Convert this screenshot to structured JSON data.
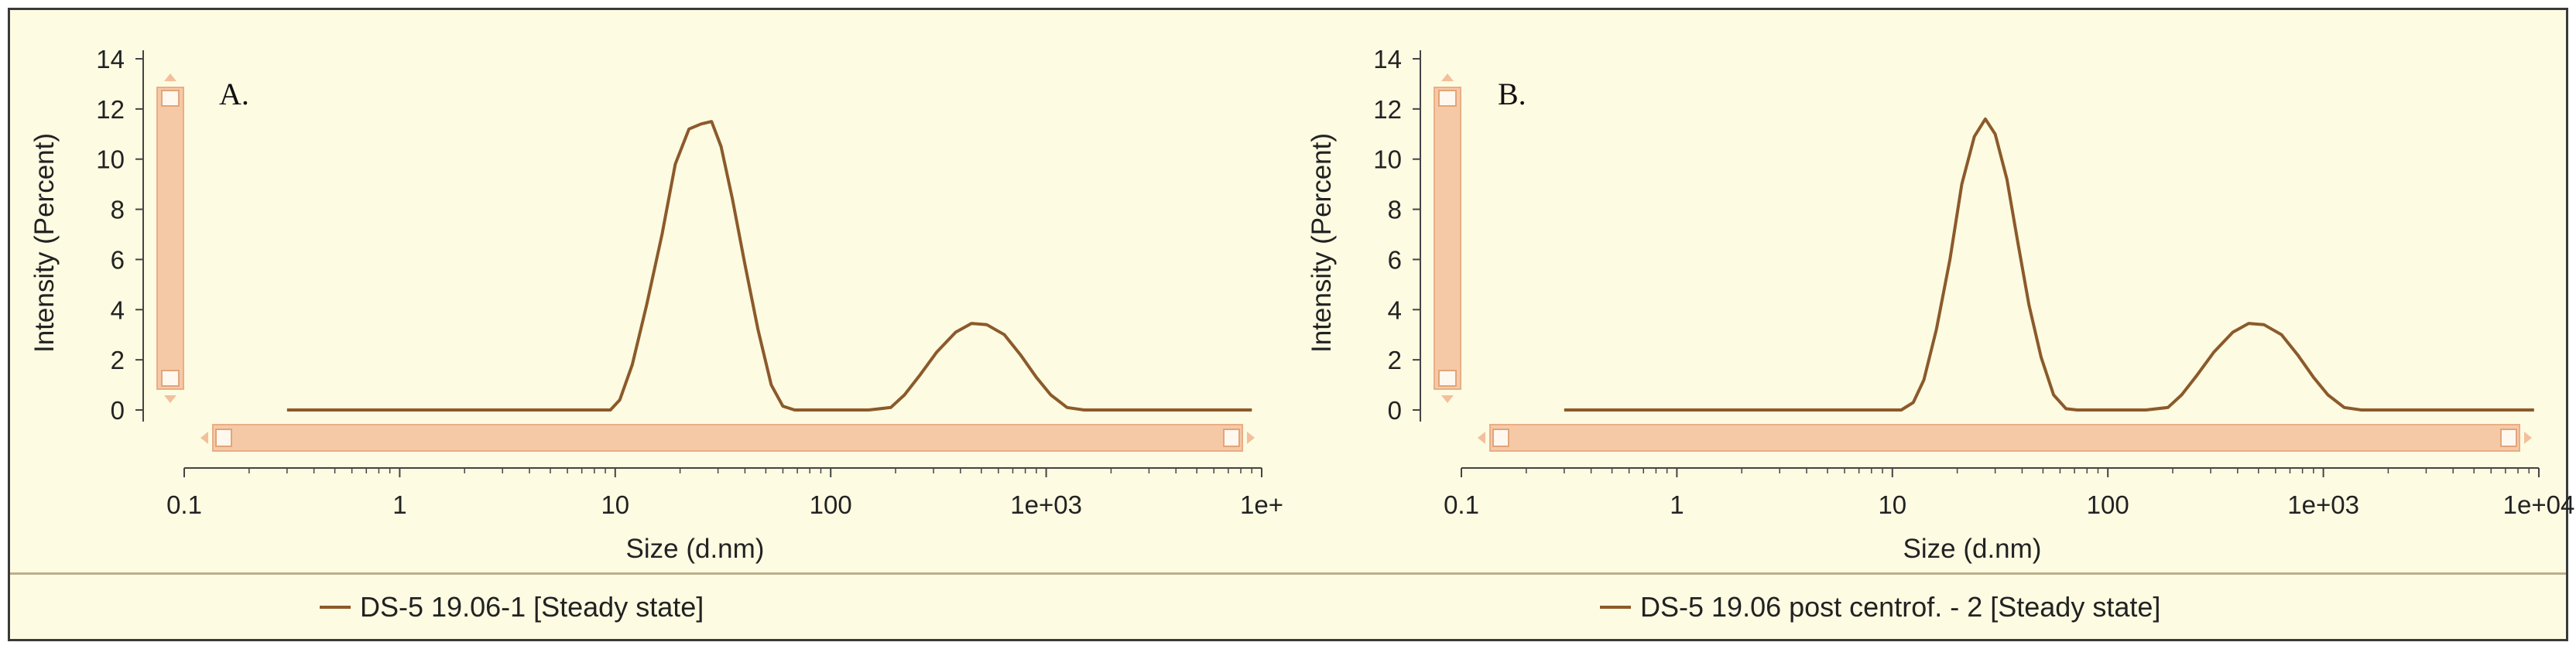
{
  "chart_data": [
    {
      "type": "line",
      "panel_label": "A.",
      "xlabel": "Size (d.nm)",
      "ylabel": "Intensity (Percent)",
      "x_scale": "log",
      "xlim": [
        0.1,
        10000
      ],
      "ylim": [
        0,
        14
      ],
      "x_tick_labels": [
        "0.1",
        "1",
        "10",
        "100",
        "1e+03",
        "1e+"
      ],
      "y_tick_labels": [
        "0",
        "2",
        "4",
        "6",
        "8",
        "10",
        "12",
        "14"
      ],
      "legend": "bottom-center",
      "grid": false,
      "color": "#8b5a2b",
      "series": [
        {
          "name": "DS-5 19.06-1 [Steady state]",
          "x": [
            0.3,
            9.5,
            10.5,
            12,
            14,
            16.5,
            19,
            22,
            25,
            28,
            31,
            35,
            40,
            46,
            53,
            60,
            68,
            78,
            100,
            150,
            190,
            220,
            260,
            310,
            380,
            450,
            530,
            640,
            760,
            900,
            1050,
            1250,
            1500,
            9000
          ],
          "y": [
            0,
            0,
            0.4,
            1.8,
            4.2,
            7.0,
            9.8,
            11.2,
            11.4,
            11.5,
            10.5,
            8.4,
            5.8,
            3.2,
            1.0,
            0.15,
            0,
            0,
            0,
            0,
            0.1,
            0.6,
            1.4,
            2.3,
            3.1,
            3.45,
            3.4,
            3.0,
            2.2,
            1.3,
            0.6,
            0.1,
            0,
            0
          ]
        }
      ]
    },
    {
      "type": "line",
      "panel_label": "B.",
      "xlabel": "Size (d.nm)",
      "ylabel": "Intensity (Percent)",
      "x_scale": "log",
      "xlim": [
        0.1,
        10000
      ],
      "ylim": [
        0,
        14
      ],
      "x_tick_labels": [
        "0.1",
        "1",
        "10",
        "100",
        "1e+03",
        "1e+04"
      ],
      "y_tick_labels": [
        "0",
        "2",
        "4",
        "6",
        "8",
        "10",
        "12",
        "14"
      ],
      "legend": "bottom-center",
      "grid": false,
      "color": "#8b5a2b",
      "series": [
        {
          "name": "DS-5 19.06 post centrof. - 2 [Steady state]",
          "x": [
            0.3,
            11,
            12.5,
            14,
            16,
            18.5,
            21,
            24,
            27,
            30,
            34,
            38,
            43,
            49,
            56,
            64,
            72,
            82,
            100,
            150,
            190,
            220,
            260,
            310,
            380,
            450,
            530,
            640,
            760,
            900,
            1050,
            1250,
            1500,
            9500
          ],
          "y": [
            0,
            0,
            0.3,
            1.2,
            3.2,
            6.0,
            9.0,
            10.9,
            11.6,
            11.0,
            9.2,
            6.8,
            4.2,
            2.1,
            0.6,
            0.05,
            0,
            0,
            0,
            0,
            0.1,
            0.6,
            1.4,
            2.3,
            3.1,
            3.45,
            3.4,
            3.0,
            2.2,
            1.3,
            0.6,
            0.1,
            0,
            0
          ]
        }
      ]
    }
  ]
}
